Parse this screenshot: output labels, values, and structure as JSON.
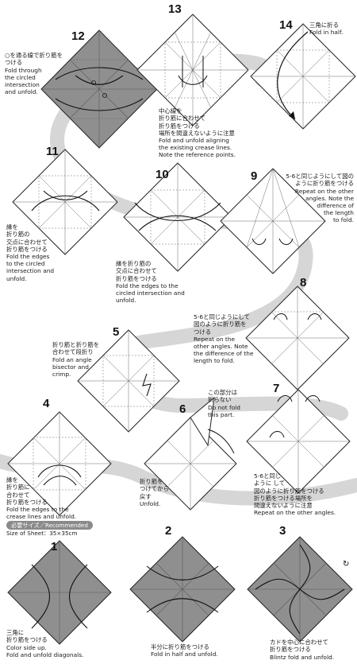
{
  "steps": [
    {
      "num": "1",
      "ja": "三角に\n折り筋をつける",
      "en": "Color side up.\nFold and unfold diagonals."
    },
    {
      "num": "2",
      "ja": "半分に折り筋をつける",
      "en": "Fold in half and unfold."
    },
    {
      "num": "3",
      "ja": "カドを中心に合わせて\n折り筋をつける",
      "en": "Blintz fold and unfold."
    },
    {
      "num": "4",
      "ja": "縁を\n折り筋に\n合わせて\n折り筋をつける",
      "en": "Fold the edges to the\ncrease lines and unfold."
    },
    {
      "num": "5",
      "ja": "折り筋と折り筋を\n合わせて段折り",
      "en": "Fold an angle\nbisector and\ncrimp."
    },
    {
      "num": "6",
      "ja": "折り筋を\nつけてから\n戻す",
      "en": "Unfold."
    },
    {
      "num": "7",
      "ja": "5-6と同じ\nように して\n図のように折り筋をつける\n折り筋をつける場所を\n間違えないように注意",
      "en": "Repeat on the other angles."
    },
    {
      "num": "8",
      "ja": "5-6と同じようにして\n図のように折り筋を\nつける",
      "en": "Repeat on the\nother angles. Note\nthe difference of the\nlength to fold."
    },
    {
      "num": "9",
      "ja": "5-6と同じようにして図の\nように折り筋をつける",
      "en": "Repeat on the other\nangles. Note the\ndifference of\nthe length\nto fold."
    },
    {
      "num": "10",
      "ja": "縁を折り筋の\n交点に合わせて\n折り筋をつける",
      "en": "Fold the edges to the\ncircled intersection and\nunfold."
    },
    {
      "num": "11",
      "ja": "縁を\n折り筋の\n交点に合わせて\n折り筋をつける",
      "en": "Fold the edges\nto the circled\nintersection and\nunfold."
    },
    {
      "num": "12",
      "ja": "○を通る線で折り筋を\nつける",
      "en": "Fold through\nthe circled\nintersection\nand unfold."
    },
    {
      "num": "13",
      "ja": "中心線を\n折り筋に合わせて\n折り筋をつける\n場所を間違えないように注意",
      "en": "Fold and unfold aligning\nthe existing crease lines.\nNote the reference points."
    },
    {
      "num": "14",
      "ja": "三角に折る",
      "en": "Fold in half."
    }
  ],
  "step6_note": {
    "ja": "この部分は\n折らない",
    "en": "Do not fold\nthis part."
  },
  "recommend": {
    "badge": "必要サイズ／Recommended",
    "size": "Size of Sheet：35×35cm"
  },
  "colors": {
    "paper_gray": "#8f8f8f",
    "paper_white": "#ffffff",
    "path_band": "#d6d6d6",
    "line": "#333333",
    "crease": "#6a6a6a"
  }
}
